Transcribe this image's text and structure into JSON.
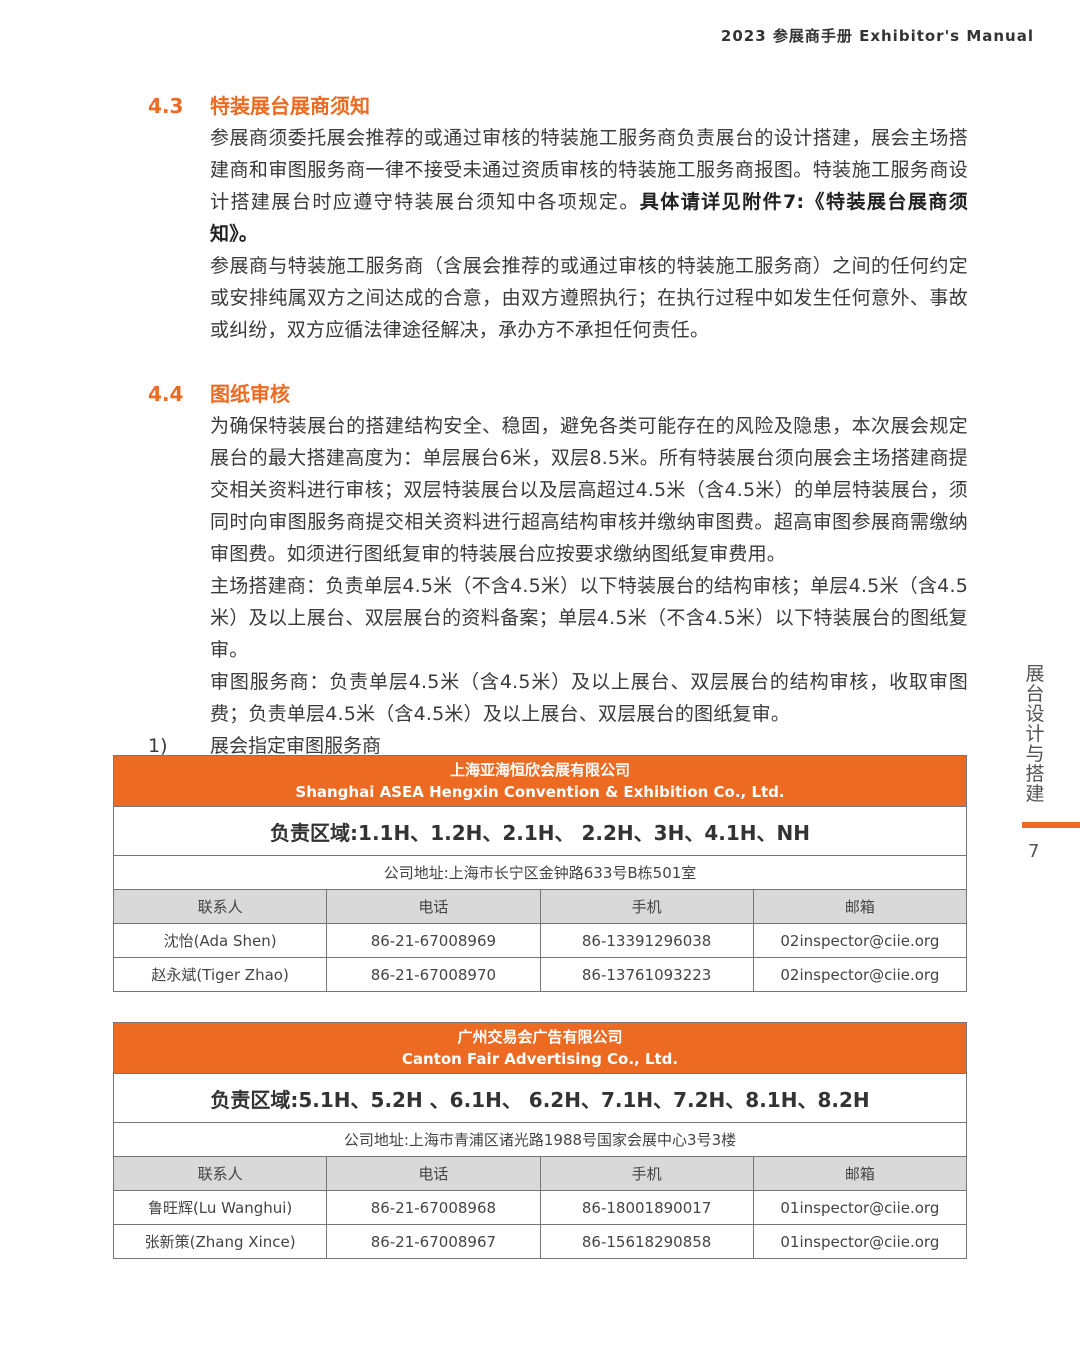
{
  "header": {
    "title": "2023 参展商手册 Exhibitor's Manual"
  },
  "s43": {
    "num": "4.3",
    "title": "特装展台展商须知",
    "p1a": "参展商须委托展会推荐的或通过审核的特装施工服务商负责展台的设计搭建，展会主场搭建商和审图服务商一律不接受未通过资质审核的特装施工服务商报图。特装施工服务商设计搭建展台时应遵守特装展台须知中各项规定。",
    "p1b": "具体请详见附件7:《特装展台展商须知》。",
    "p2": "参展商与特装施工服务商（含展会推荐的或通过审核的特装施工服务商）之间的任何约定或安排纯属双方之间达成的合意，由双方遵照执行；在执行过程中如发生任何意外、事故或纠纷，双方应循法律途径解决，承办方不承担任何责任。"
  },
  "s44": {
    "num": "4.4",
    "title": "图纸审核",
    "p1": "为确保特装展台的搭建结构安全、稳固，避免各类可能存在的风险及隐患，本次展会规定展台的最大搭建高度为：单层展台6米，双层8.5米。所有特装展台须向展会主场搭建商提交相关资料进行审核；双层特装展台以及层高超过4.5米（含4.5米）的单层特装展台，须同时向审图服务商提交相关资料进行超高结构审核并缴纳审图费。超高审图参展商需缴纳审图费。如须进行图纸复审的特装展台应按要求缴纳图纸复审费用。",
    "p2": "主场搭建商：负责单层4.5米（不含4.5米）以下特装展台的结构审核；单层4.5米（含4.5米）及以上展台、双层展台的资料备案；单层4.5米（不含4.5米）以下特装展台的图纸复审。",
    "p3": "审图服务商：负责单层4.5米（含4.5米）及以上展台、双层展台的结构审核，收取审图费；负责单层4.5米（含4.5米）及以上展台、双层展台的图纸复审。",
    "item_num": "1)",
    "item": "展会指定审图服务商"
  },
  "columns": [
    "联系人",
    "电话",
    "手机",
    "邮箱"
  ],
  "tables": [
    {
      "name_cn": "上海亚海恒欣会展有限公司",
      "name_en": "Shanghai ASEA Hengxin Convention & Exhibition Co., Ltd.",
      "zone": "负责区域:1.1H、1.2H、2.1H、 2.2H、3H、4.1H、NH",
      "address": "公司地址:上海市长宁区金钟路633号B栋501室",
      "rows": [
        [
          "沈怡(Ada Shen)",
          "86-21-67008969",
          "86-13391296038",
          "02inspector@ciie.org"
        ],
        [
          "赵永斌(Tiger Zhao)",
          "86-21-67008970",
          "86-13761093223",
          "02inspector@ciie.org"
        ]
      ]
    },
    {
      "name_cn": "广州交易会广告有限公司",
      "name_en": "Canton Fair Advertising Co., Ltd.",
      "zone": "负责区域:5.1H、5.2H 、6.1H、 6.2H、7.1H、7.2H、8.1H、8.2H",
      "address": "公司地址:上海市青浦区诸光路1988号国家会展中心3号3楼",
      "rows": [
        [
          "鲁旺辉(Lu Wanghui)",
          "86-21-67008968",
          "86-18001890017",
          "01inspector@ciie.org"
        ],
        [
          "张新策(Zhang Xince)",
          "86-21-67008967",
          "86-15618290858",
          "01inspector@ciie.org"
        ]
      ]
    }
  ],
  "side": {
    "chapter": "展台设计与搭建",
    "page": "7"
  },
  "colors": {
    "accent": "#ec6a22",
    "header_gray": "#d9d9d9"
  }
}
